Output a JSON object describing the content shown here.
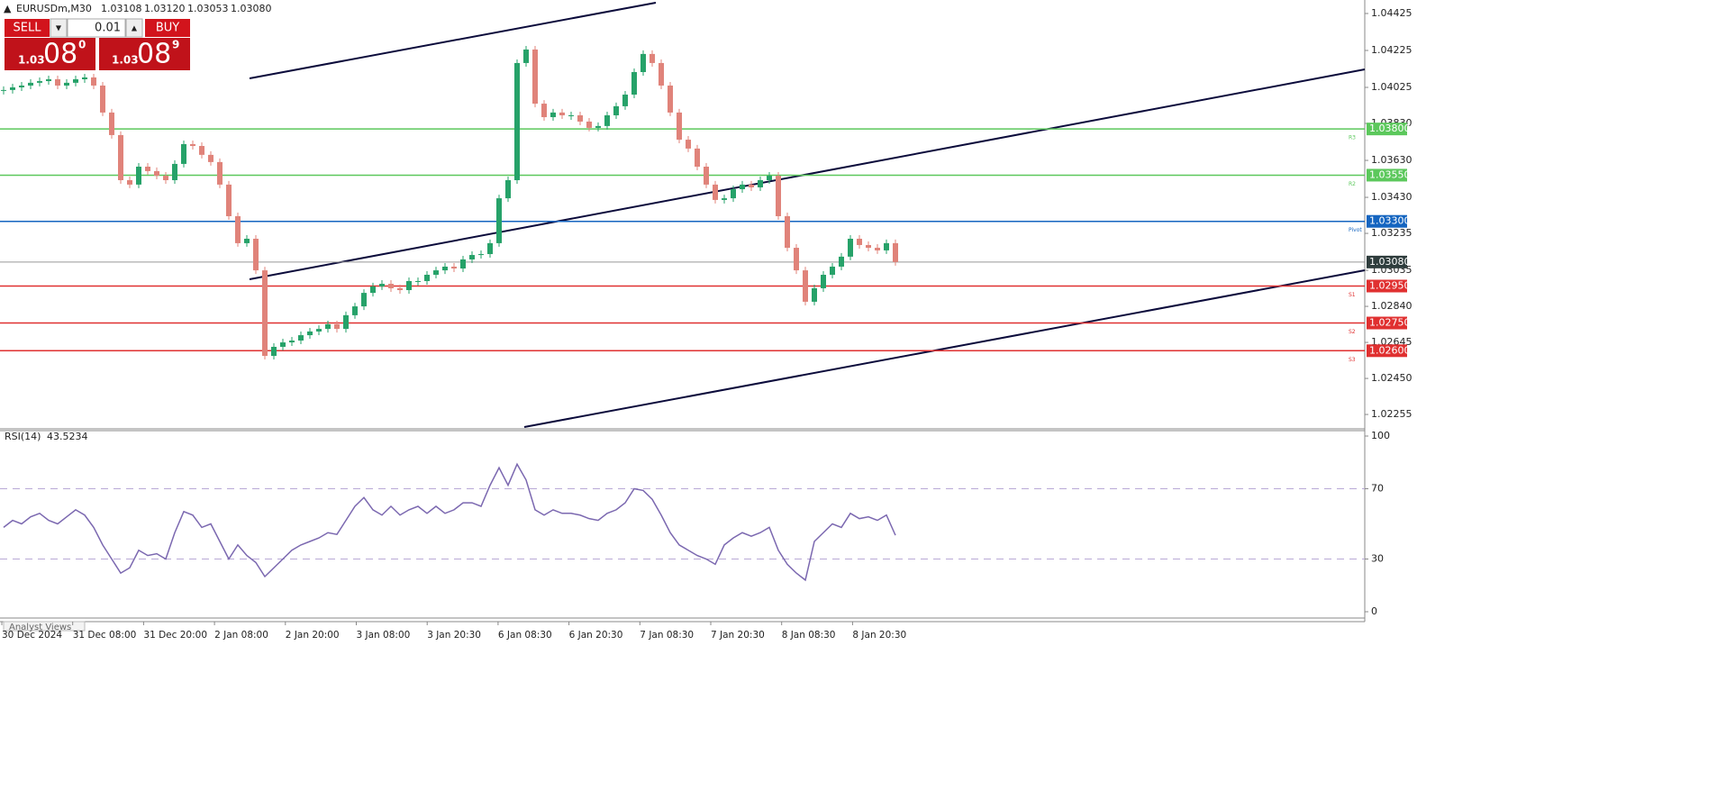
{
  "header": {
    "symbol": "EURUSDm,M30",
    "ohlc": [
      "1.03108",
      "1.03120",
      "1.03053",
      "1.03080"
    ]
  },
  "trade_panel": {
    "sell": "SELL",
    "buy": "BUY",
    "lot": "0.01",
    "sell_price": {
      "prefix": "1.03",
      "big": "08",
      "sup": "0"
    },
    "buy_price": {
      "prefix": "1.03",
      "big": "08",
      "sup": "9"
    }
  },
  "chart_data": [
    {
      "type": "candlestick",
      "up_color": "#26a269",
      "down_color": "#e0837a",
      "closes": [
        1.04011,
        1.04025,
        1.04035,
        1.0405,
        1.04059,
        1.04069,
        1.04035,
        1.0405,
        1.04069,
        1.04079,
        1.04035,
        1.03889,
        1.03767,
        1.03523,
        1.03499,
        1.03596,
        1.03572,
        1.03547,
        1.03523,
        1.03611,
        1.03718,
        1.03708,
        1.0366,
        1.03621,
        1.03499,
        1.03328,
        1.03182,
        1.03206,
        1.03035,
        1.02572,
        1.02621,
        1.02645,
        1.02655,
        1.02684,
        1.02704,
        1.02718,
        1.02743,
        1.02718,
        1.02792,
        1.0284,
        1.02913,
        1.02948,
        1.02962,
        1.02938,
        1.02928,
        1.02977,
        1.02977,
        1.03011,
        1.03035,
        1.03055,
        1.03045,
        1.03094,
        1.03118,
        1.03123,
        1.03182,
        1.03425,
        1.03523,
        1.04157,
        1.0423,
        1.03937,
        1.03864,
        1.03889,
        1.03874,
        1.03874,
        1.0384,
        1.03806,
        1.03816,
        1.03874,
        1.03923,
        1.03986,
        1.04108,
        1.04206,
        1.04157,
        1.04035,
        1.03889,
        1.03742,
        1.03694,
        1.03596,
        1.03499,
        1.03416,
        1.03425,
        1.03474,
        1.03499,
        1.03484,
        1.03523,
        1.03547,
        1.03328,
        1.03157,
        1.03035,
        1.02865,
        1.02938,
        1.03011,
        1.03055,
        1.03109,
        1.03206,
        1.03172,
        1.03157,
        1.03143,
        1.03182,
        1.0308
      ],
      "ylim": [
        1.02187,
        1.04498
      ],
      "yticks": [
        1.04425,
        1.04225,
        1.04025,
        {
          "value": 1.0383,
          "label": "1.03830"
        },
        {
          "value": 1.0363,
          "label": "1.03630"
        },
        {
          "value": 1.0343,
          "label": "1.03430"
        },
        1.03235,
        1.03035,
        {
          "value": 1.0284,
          "label": "1.02840"
        },
        1.02645,
        {
          "value": 1.0245,
          "label": "1.02450"
        },
        1.02255
      ],
      "levels": [
        {
          "name": "R3",
          "value": 1.038,
          "label": "1.03800",
          "color": "#5cc85c"
        },
        {
          "name": "R2",
          "value": 1.0355,
          "label": "1.03550",
          "color": "#5cc85c"
        },
        {
          "name": "Pivot",
          "value": 1.033,
          "label": "1.03300",
          "color": "#1565c0"
        },
        {
          "name": "S1",
          "value": 1.0295,
          "label": "1.02950",
          "color": "#e03030"
        },
        {
          "name": "S2",
          "value": 1.0275,
          "label": "1.02750",
          "color": "#e03030"
        },
        {
          "name": "S3",
          "value": 1.026,
          "label": "1.02600",
          "color": "#e03030"
        }
      ],
      "current": {
        "value": 1.0308,
        "label": "1.03080",
        "color": "#2f3d3d"
      },
      "x_labels": [
        "30 Dec 2024",
        "31 Dec 08:00",
        "31 Dec 20:00",
        "2 Jan 08:00",
        "2 Jan 20:00",
        "3 Jan 08:00",
        "3 Jan 20:30",
        "6 Jan 08:30",
        "6 Jan 20:30",
        "7 Jan 08:30",
        "7 Jan 20:30",
        "8 Jan 08:30",
        "8 Jan 20:30"
      ]
    },
    {
      "type": "line",
      "title": "RSI(14)",
      "color": "#7b68b0",
      "values": [
        48,
        52,
        50,
        54,
        56,
        52,
        50,
        54,
        58,
        55,
        48,
        38,
        30,
        22,
        25,
        35,
        32,
        33,
        30,
        45,
        57,
        55,
        48,
        50,
        40,
        30,
        38,
        32,
        28,
        20,
        25,
        30,
        35,
        38,
        40,
        42,
        45,
        44,
        52,
        60,
        65,
        58,
        55,
        60,
        55,
        58,
        60,
        56,
        60,
        56,
        58,
        62,
        62,
        60,
        72,
        82,
        72,
        84,
        75,
        58,
        55,
        58,
        56,
        56,
        55,
        53,
        52,
        56,
        58,
        62,
        70,
        69,
        64,
        55,
        45,
        38,
        35,
        32,
        30,
        27,
        38,
        42,
        45,
        43,
        45,
        48,
        35,
        27,
        22,
        18,
        40,
        45,
        50,
        48,
        56,
        53,
        54,
        52,
        55,
        43.5234
      ],
      "ylim": [
        0,
        100
      ],
      "yticks": [
        100,
        70,
        30,
        0
      ],
      "dashed": [
        70,
        30
      ]
    }
  ],
  "footer": {
    "tab": "Analyst Views"
  }
}
